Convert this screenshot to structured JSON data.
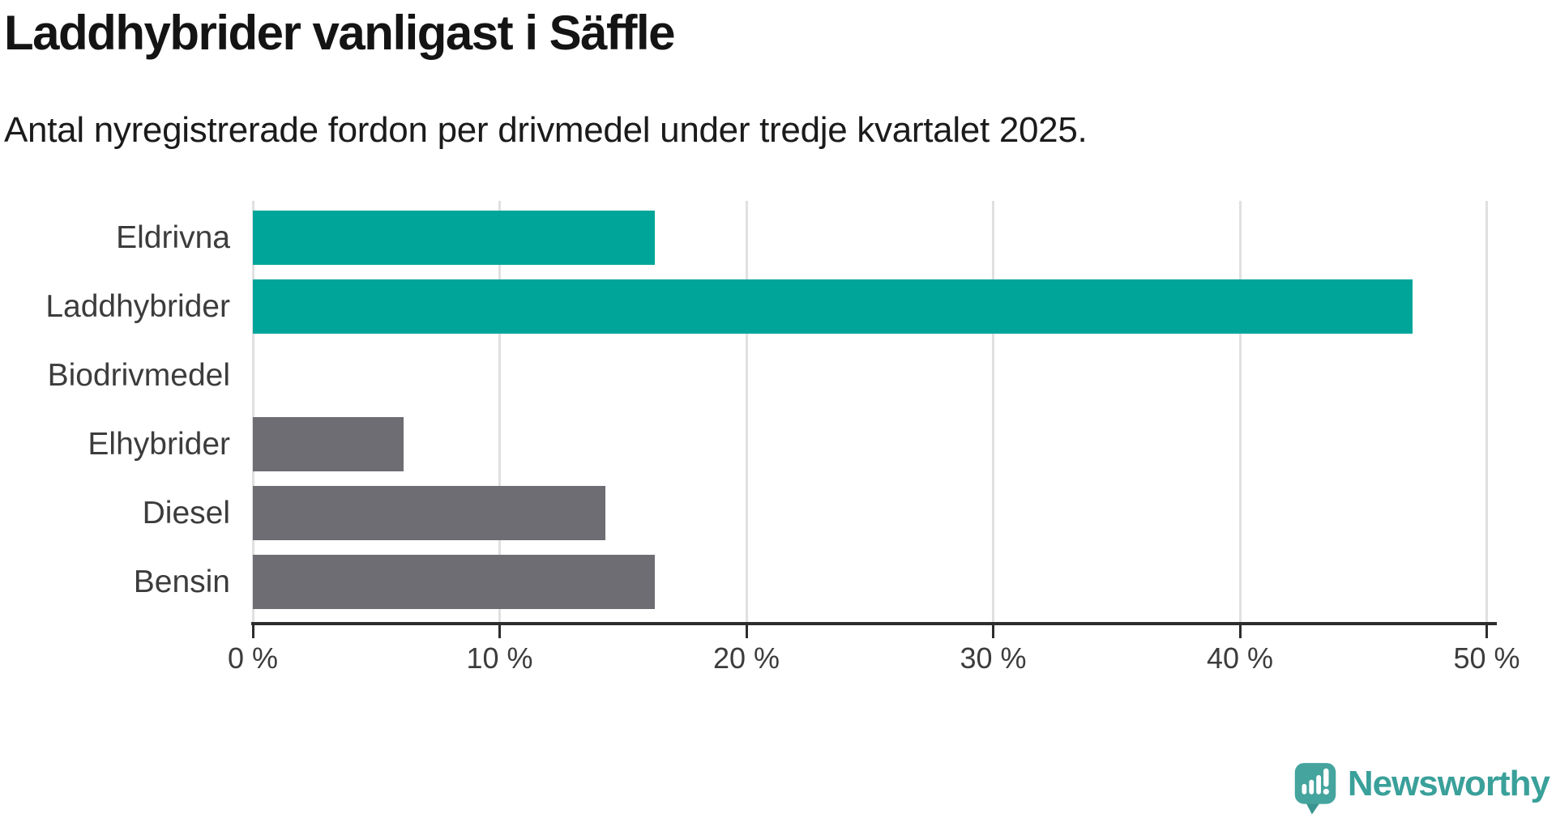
{
  "header": {
    "title": "Laddhybrider vanligast i Säffle",
    "subtitle": "Antal nyregistrerade fordon per drivmedel under tredje kvartalet 2025."
  },
  "chart_data": {
    "type": "bar",
    "orientation": "horizontal",
    "title": "Laddhybrider vanligast i Säffle",
    "subtitle": "Antal nyregistrerade fordon per drivmedel under tredje kvartalet 2025.",
    "categories": [
      "Eldrivna",
      "Laddhybrider",
      "Biodrivmedel",
      "Elhybrider",
      "Diesel",
      "Bensin"
    ],
    "values": [
      16.3,
      47.0,
      0,
      6.1,
      14.3,
      16.3
    ],
    "unit": "%",
    "xlim": [
      0,
      50
    ],
    "x_tick_values": [
      0,
      10,
      20,
      30,
      40,
      50
    ],
    "x_tick_labels": [
      "0 %",
      "10 %",
      "20 %",
      "30 %",
      "40 %",
      "50 %"
    ],
    "grid": true,
    "legend": false,
    "bar_colors": [
      "#00a59a",
      "#00a59a",
      "#6d6d73",
      "#6d6d73",
      "#6d6d73",
      "#6d6d73"
    ],
    "highlight_color": "#00a59a",
    "default_color": "#6d6d73",
    "gridline_color": "#e0e0e0",
    "axis_color": "#2d2d2d"
  },
  "footer": {
    "brand": "Newsworthy",
    "logo_icon": "newsworthy-speech-bubble-chart-icon",
    "brand_color": "#3aa09a",
    "logo_mark_color": "#45a49e"
  }
}
